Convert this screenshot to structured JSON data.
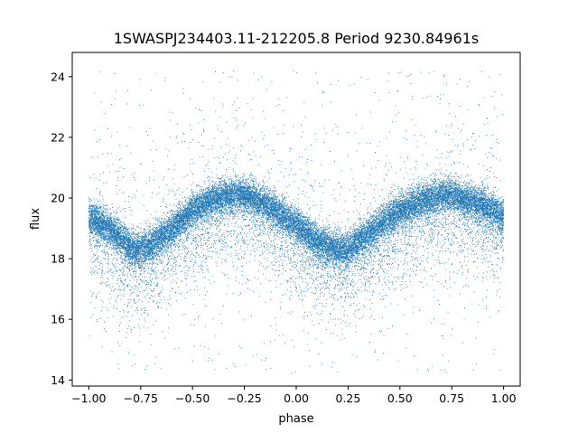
{
  "chart_data": {
    "type": "scatter",
    "title": "1SWASPJ234403.11-212205.8 Period 9230.84961s",
    "xlabel": "phase",
    "ylabel": "flux",
    "xlim": [
      -1.08,
      1.08
    ],
    "ylim": [
      13.8,
      24.8
    ],
    "x_ticks": [
      -1.0,
      -0.75,
      -0.5,
      -0.25,
      0.0,
      0.25,
      0.5,
      0.75,
      1.0
    ],
    "x_tick_labels": [
      "−1.00",
      "−0.75",
      "−0.50",
      "−0.25",
      "0.00",
      "0.25",
      "0.50",
      "0.75",
      "1.00"
    ],
    "y_ticks": [
      14,
      16,
      18,
      20,
      22,
      24
    ],
    "y_tick_labels": [
      "14",
      "16",
      "18",
      "20",
      "22",
      "24"
    ],
    "grid": false,
    "marker_color": "#1f77b4",
    "series": [
      {
        "phase": [
          -1.0,
          -0.9,
          -0.8,
          -0.75,
          -0.7,
          -0.6,
          -0.5,
          -0.4,
          -0.3,
          -0.25,
          -0.2,
          -0.1,
          0.0,
          0.1,
          0.2,
          0.25,
          0.3,
          0.4,
          0.5,
          0.6,
          0.7,
          0.75,
          0.8,
          0.9,
          1.0
        ],
        "median_flux": [
          19.4,
          19.0,
          18.4,
          18.3,
          18.5,
          19.0,
          19.6,
          20.0,
          20.1,
          20.1,
          20.0,
          19.6,
          19.1,
          18.6,
          18.3,
          18.3,
          18.6,
          19.1,
          19.6,
          19.9,
          20.1,
          20.1,
          20.0,
          19.8,
          19.4
        ],
        "core_scatter": 0.5,
        "outlier_range": [
          14.2,
          24.2
        ],
        "n_points": 26000
      }
    ]
  }
}
